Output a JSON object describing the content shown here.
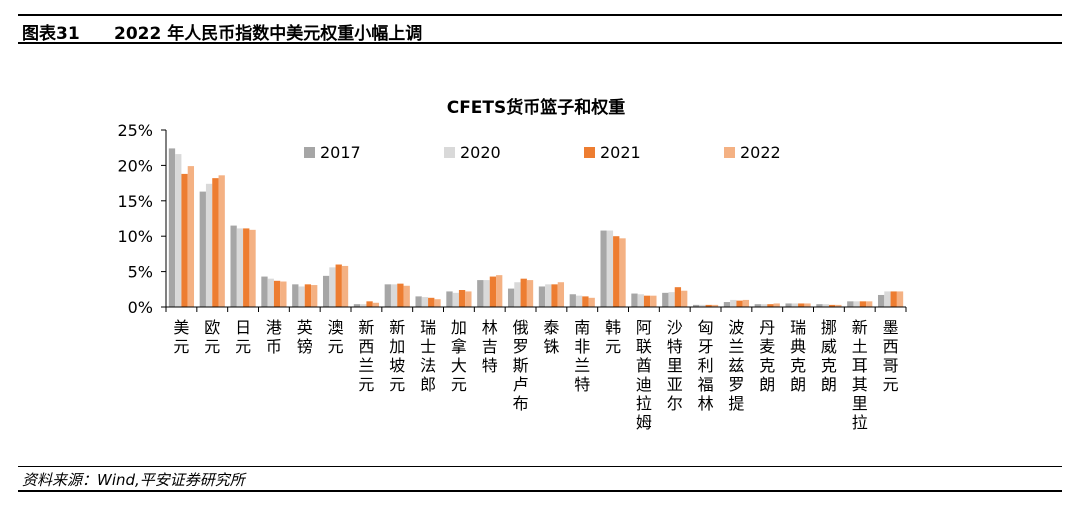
{
  "figure": {
    "number": "图表31",
    "caption": "2022 年人民币指数中美元权重小幅上调",
    "source": "资料来源：Wind,平安证券研究所"
  },
  "chart_data": {
    "type": "bar",
    "title": "CFETS货币篮子和权重",
    "xlabel": "",
    "ylabel": "",
    "ylim": [
      0,
      25
    ],
    "yticks": [
      "0%",
      "5%",
      "10%",
      "15%",
      "20%",
      "25%"
    ],
    "yticks_values": [
      0,
      5,
      10,
      15,
      20,
      25
    ],
    "grid": false,
    "legend_position": "top",
    "categories": [
      "美元",
      "欧元",
      "日元",
      "港币",
      "英镑",
      "澳元",
      "新西兰元",
      "新加坡元",
      "瑞士法郎",
      "加拿大元",
      "林吉特",
      "俄罗斯卢布",
      "泰铢",
      "南非兰特",
      "韩元",
      "阿联酋迪拉姆",
      "沙特里亚尔",
      "匈牙利福林",
      "波兰兹罗提",
      "丹麦克朗",
      "瑞典克朗",
      "挪威克朗",
      "新土耳其里拉",
      "墨西哥元"
    ],
    "series": [
      {
        "name": "2017",
        "color": "#a6a6a6",
        "values": [
          22.4,
          16.3,
          11.5,
          4.3,
          3.2,
          4.4,
          0.4,
          3.2,
          1.5,
          2.2,
          3.8,
          2.6,
          2.9,
          1.8,
          10.8,
          1.9,
          2.0,
          0.3,
          0.7,
          0.4,
          0.5,
          0.4,
          0.8,
          1.7
        ]
      },
      {
        "name": "2020",
        "color": "#d9d9d9",
        "values": [
          21.6,
          17.4,
          11.1,
          4.0,
          2.9,
          5.6,
          0.4,
          3.2,
          1.4,
          2.0,
          3.8,
          3.5,
          3.2,
          1.6,
          10.8,
          1.8,
          2.1,
          0.3,
          1.0,
          0.4,
          0.5,
          0.4,
          0.8,
          2.2
        ]
      },
      {
        "name": "2021",
        "color": "#ed7d31",
        "values": [
          18.8,
          18.2,
          11.1,
          3.7,
          3.2,
          6.0,
          0.8,
          3.3,
          1.3,
          2.4,
          4.3,
          4.0,
          3.2,
          1.5,
          10.0,
          1.6,
          2.8,
          0.3,
          0.9,
          0.4,
          0.5,
          0.3,
          0.8,
          2.2
        ]
      },
      {
        "name": "2022",
        "color": "#f4b183",
        "values": [
          19.9,
          18.6,
          10.9,
          3.6,
          3.1,
          5.8,
          0.6,
          3.0,
          1.1,
          2.2,
          4.5,
          3.8,
          3.5,
          1.3,
          9.7,
          1.6,
          2.3,
          0.3,
          1.0,
          0.5,
          0.5,
          0.3,
          0.8,
          2.2
        ]
      }
    ]
  }
}
